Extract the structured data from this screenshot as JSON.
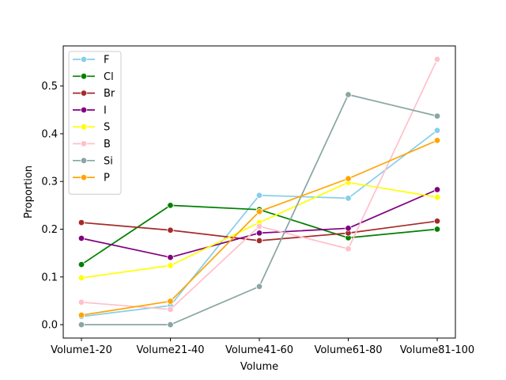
{
  "chart_data": {
    "type": "line",
    "title": "",
    "xlabel": "Volume",
    "ylabel": "Proportion",
    "categories": [
      "Volume1-20",
      "Volume21-40",
      "Volume41-60",
      "Volume61-80",
      "Volume81-100"
    ],
    "ylim": [
      -0.028,
      0.584
    ],
    "yticks": [
      0.0,
      0.1,
      0.2,
      0.3,
      0.4,
      0.5
    ],
    "ytick_labels": [
      "0.0",
      "0.1",
      "0.2",
      "0.3",
      "0.4",
      "0.5"
    ],
    "grid": false,
    "legend_position": "top-left",
    "series": [
      {
        "name": "F",
        "color": "#87ceeb",
        "values": [
          0.017,
          0.04,
          0.271,
          0.265,
          0.407
        ]
      },
      {
        "name": "Cl",
        "color": "#008000",
        "values": [
          0.126,
          0.25,
          0.241,
          0.182,
          0.2
        ]
      },
      {
        "name": "Br",
        "color": "#a52a2a",
        "values": [
          0.214,
          0.198,
          0.176,
          0.192,
          0.217
        ]
      },
      {
        "name": "I",
        "color": "#800080",
        "values": [
          0.181,
          0.141,
          0.192,
          0.202,
          0.283
        ]
      },
      {
        "name": "S",
        "color": "#ffff00",
        "values": [
          0.098,
          0.124,
          0.214,
          0.298,
          0.267
        ]
      },
      {
        "name": "B",
        "color": "#ffc0cb",
        "values": [
          0.047,
          0.032,
          0.206,
          0.159,
          0.556
        ]
      },
      {
        "name": "Si",
        "color": "#88a6a3",
        "values": [
          0.0,
          0.0,
          0.08,
          0.482,
          0.437
        ]
      },
      {
        "name": "P",
        "color": "#ffa500",
        "values": [
          0.02,
          0.049,
          0.237,
          0.306,
          0.386
        ]
      }
    ]
  }
}
